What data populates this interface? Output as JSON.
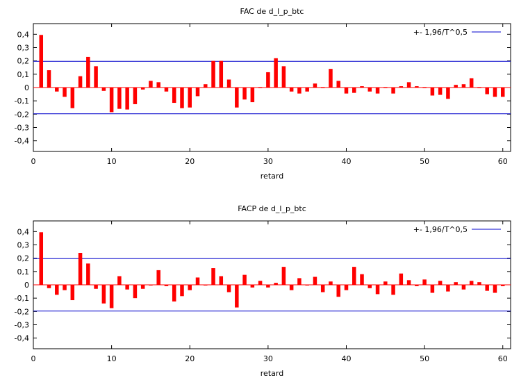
{
  "chart_data": [
    {
      "type": "bar",
      "title": "FAC de d_l_p_btc",
      "xlabel": "retard",
      "ylabel": "",
      "xlim": [
        0,
        61
      ],
      "ylim": [
        -0.48,
        0.48
      ],
      "x_ticks": [
        0,
        10,
        20,
        30,
        40,
        50,
        60
      ],
      "y_ticks": [
        -0.4,
        -0.3,
        -0.2,
        -0.1,
        0,
        0.1,
        0.2,
        0.3,
        0.4
      ],
      "y_tick_labels": [
        "-0,4",
        "-0,3",
        "-0,2",
        "-0,1",
        "0",
        "0,1",
        "0,2",
        "0,3",
        "0,4"
      ],
      "bar_color": "#ff0000",
      "band_color": "#0000cc",
      "legend": {
        "label": "+- 1,96/T^0,5",
        "position": "top-right"
      },
      "band": 0.197,
      "x": [
        1,
        2,
        3,
        4,
        5,
        6,
        7,
        8,
        9,
        10,
        11,
        12,
        13,
        14,
        15,
        16,
        17,
        18,
        19,
        20,
        21,
        22,
        23,
        24,
        25,
        26,
        27,
        28,
        29,
        30,
        31,
        32,
        33,
        34,
        35,
        36,
        37,
        38,
        39,
        40,
        41,
        42,
        43,
        44,
        45,
        46,
        47,
        48,
        49,
        50,
        51,
        52,
        53,
        54,
        55,
        56,
        57,
        58,
        59,
        60
      ],
      "values": [
        0.395,
        0.13,
        -0.03,
        -0.07,
        -0.155,
        0.085,
        0.23,
        0.16,
        -0.025,
        -0.185,
        -0.16,
        -0.165,
        -0.125,
        -0.015,
        0.05,
        0.04,
        -0.03,
        -0.115,
        -0.155,
        -0.15,
        -0.065,
        0.025,
        0.2,
        0.2,
        0.06,
        -0.15,
        -0.09,
        -0.11,
        -0.005,
        0.115,
        0.22,
        0.16,
        -0.03,
        -0.045,
        -0.03,
        0.03,
        -0.005,
        0.14,
        0.05,
        -0.045,
        -0.04,
        0.01,
        -0.03,
        -0.045,
        -0.005,
        -0.045,
        0.01,
        0.04,
        0.01,
        -0.005,
        -0.06,
        -0.055,
        -0.085,
        0.02,
        0.025,
        0.07,
        -0.005,
        -0.05,
        -0.07,
        -0.07
      ]
    },
    {
      "type": "bar",
      "title": "FACP de d_l_p_btc",
      "xlabel": "retard",
      "ylabel": "",
      "xlim": [
        0,
        61
      ],
      "ylim": [
        -0.48,
        0.48
      ],
      "x_ticks": [
        0,
        10,
        20,
        30,
        40,
        50,
        60
      ],
      "y_ticks": [
        -0.4,
        -0.3,
        -0.2,
        -0.1,
        0,
        0.1,
        0.2,
        0.3,
        0.4
      ],
      "y_tick_labels": [
        "-0,4",
        "-0,3",
        "-0,2",
        "-0,1",
        "0",
        "0,1",
        "0,2",
        "0,3",
        "0,4"
      ],
      "bar_color": "#ff0000",
      "band_color": "#0000cc",
      "legend": {
        "label": "+- 1,96/T^0,5",
        "position": "top-right"
      },
      "band": 0.197,
      "x": [
        1,
        2,
        3,
        4,
        5,
        6,
        7,
        8,
        9,
        10,
        11,
        12,
        13,
        14,
        15,
        16,
        17,
        18,
        19,
        20,
        21,
        22,
        23,
        24,
        25,
        26,
        27,
        28,
        29,
        30,
        31,
        32,
        33,
        34,
        35,
        36,
        37,
        38,
        39,
        40,
        41,
        42,
        43,
        44,
        45,
        46,
        47,
        48,
        49,
        50,
        51,
        52,
        53,
        54,
        55,
        56,
        57,
        58,
        59,
        60
      ],
      "values": [
        0.395,
        -0.025,
        -0.075,
        -0.04,
        -0.115,
        0.24,
        0.16,
        -0.03,
        -0.14,
        -0.175,
        0.065,
        -0.035,
        -0.1,
        -0.03,
        0.0,
        0.11,
        -0.01,
        -0.125,
        -0.085,
        -0.04,
        0.055,
        0.0,
        0.125,
        0.065,
        -0.055,
        -0.17,
        0.075,
        -0.02,
        0.03,
        -0.02,
        0.015,
        0.135,
        -0.04,
        0.05,
        -0.005,
        0.06,
        -0.055,
        0.025,
        -0.09,
        -0.04,
        0.135,
        0.08,
        -0.025,
        -0.07,
        0.025,
        -0.075,
        0.085,
        0.035,
        -0.01,
        0.04,
        -0.06,
        0.03,
        -0.05,
        0.02,
        -0.035,
        0.03,
        0.02,
        -0.045,
        -0.06,
        -0.01
      ]
    }
  ]
}
